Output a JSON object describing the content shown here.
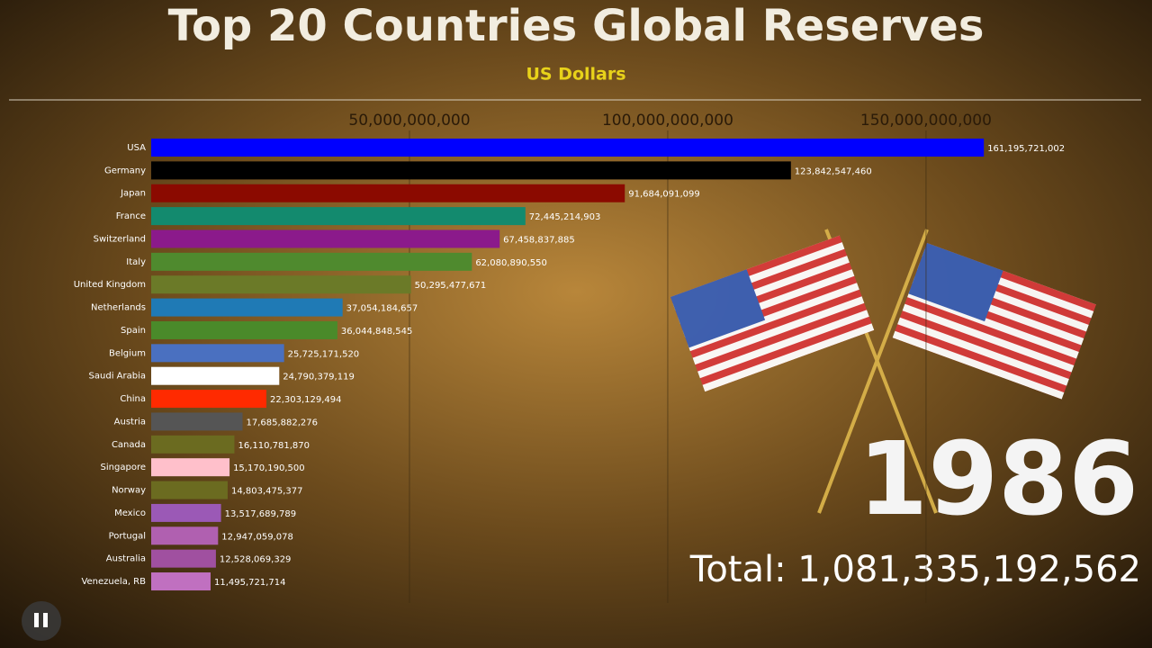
{
  "chart_data": {
    "type": "bar",
    "orientation": "horizontal",
    "title": "Top 20 Countries Global Reserves",
    "subtitle": "US Dollars",
    "year": "1986",
    "total_label": "Total: 1,081,335,192,562",
    "categories": [
      "USA",
      "Germany",
      "Japan",
      "France",
      "Switzerland",
      "Italy",
      "United Kingdom",
      "Netherlands",
      "Spain",
      "Belgium",
      "Saudi Arabia",
      "China",
      "Austria",
      "Canada",
      "Singapore",
      "Norway",
      "Mexico",
      "Portugal",
      "Australia",
      "Venezuela, RB"
    ],
    "values": [
      161195721002,
      123842547460,
      91684091099,
      72445214903,
      67458837885,
      62080890550,
      50295477671,
      37054184657,
      36044848545,
      25725171520,
      24790379119,
      22303129494,
      17685882276,
      16110781870,
      15170190500,
      14803475377,
      13517689789,
      12947059078,
      12528069329,
      11495721714
    ],
    "value_labels": [
      "161,195,721,002",
      "123,842,547,460",
      "91,684,091,099",
      "72,445,214,903",
      "67,458,837,885",
      "62,080,890,550",
      "50,295,477,671",
      "37,054,184,657",
      "36,044,848,545",
      "25,725,171,520",
      "24,790,379,119",
      "22,303,129,494",
      "17,685,882,276",
      "16,110,781,870",
      "15,170,190,500",
      "14,803,475,377",
      "13,517,689,789",
      "12,947,059,078",
      "12,528,069,329",
      "11,495,721,714"
    ],
    "colors": [
      "#0000ff",
      "#000000",
      "#8b0a00",
      "#138a6e",
      "#8b1a8b",
      "#4f8a2e",
      "#6b7a28",
      "#1f7ab5",
      "#4a8a2a",
      "#4a70c0",
      "#ffffff",
      "#ff2a00",
      "#555555",
      "#6b6b20",
      "#ffc0cb",
      "#6b6b20",
      "#9b59b6",
      "#b060b0",
      "#a050a0",
      "#c070c0"
    ],
    "xlim": [
      0,
      192000000000
    ],
    "xticks": [
      {
        "value": 50000000000,
        "label": "50,000,000,000"
      },
      {
        "value": 100000000000,
        "label": "100,000,000,000"
      },
      {
        "value": 150000000000,
        "label": "150,000,000,000"
      }
    ],
    "grid": true
  }
}
